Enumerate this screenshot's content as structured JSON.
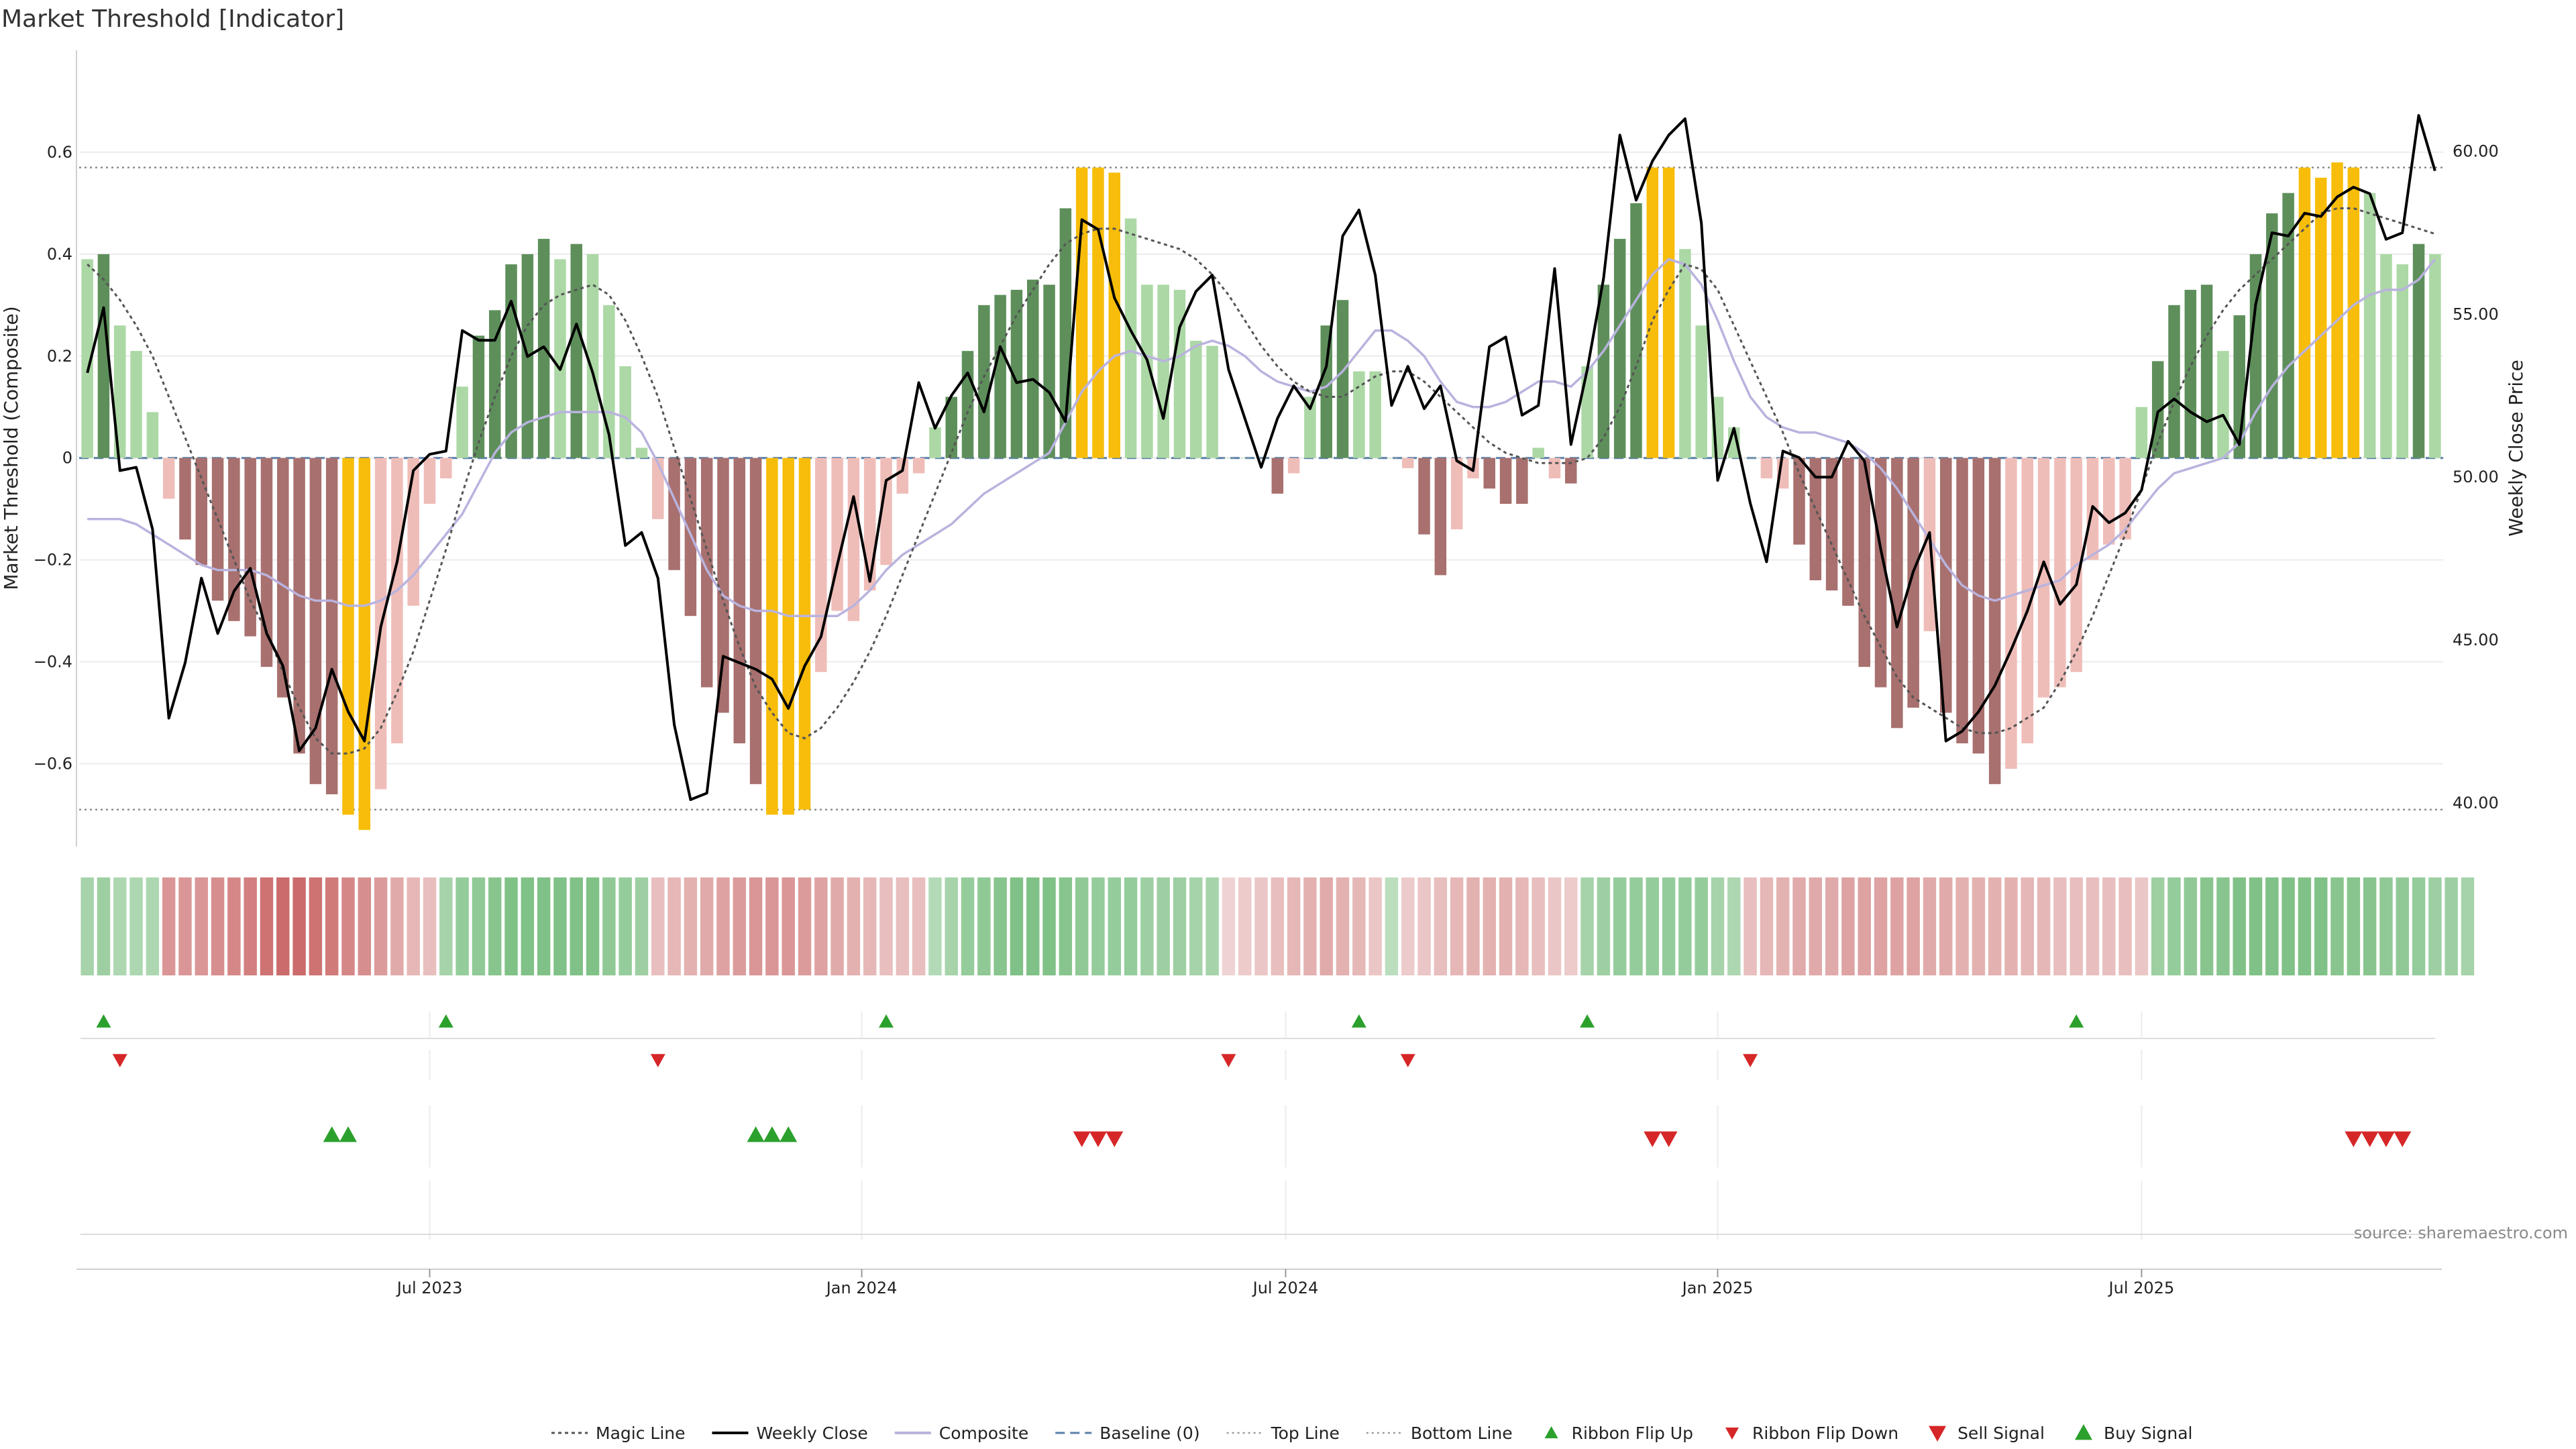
{
  "chart_data": {
    "type": "bar",
    "title": "Market Threshold [Indicator]",
    "ylabel_left": "Market Threshold (Composite)",
    "ylabel_right": "Weekly Close Price",
    "source": "source: sharemaestro.com",
    "ylim_left": [
      -0.76,
      0.8
    ],
    "ylim_right": [
      38.7,
      63.1
    ],
    "left_ticks": [
      "0.6",
      "0.4",
      "0.2",
      "0",
      "−0.2",
      "−0.4",
      "−0.6"
    ],
    "left_tick_values": [
      0.6,
      0.4,
      0.2,
      0,
      -0.2,
      -0.4,
      -0.6
    ],
    "right_ticks": [
      "60.00",
      "55.00",
      "50.00",
      "45.00",
      "40.00"
    ],
    "right_tick_values": [
      60,
      55,
      50,
      45,
      40
    ],
    "x_ticks": [
      {
        "label": "Jul 2023",
        "index": 21.5
      },
      {
        "label": "Jan 2024",
        "index": 48
      },
      {
        "label": "Jul 2024",
        "index": 74
      },
      {
        "label": "Jan 2025",
        "index": 100.5
      },
      {
        "label": "Jul 2025",
        "index": 126.5
      }
    ],
    "top_line": 0.57,
    "bottom_line": -0.69,
    "baseline": 0,
    "grid": true,
    "legend_position": "bottom",
    "colors": {
      "strong_up": "#5e8f5b",
      "weak_up": "#acd8a5",
      "strong_down": "#a8706e",
      "weak_down": "#efbdb8",
      "extreme": "#f7bd0a",
      "close": "#000000",
      "composite": "#b9b3de",
      "magic": "#555555",
      "ribbon_up": "#2ca02c",
      "ribbon_down": "#d62728"
    },
    "composite_values": [
      0.39,
      0.4,
      0.26,
      0.21,
      0.09,
      -0.08,
      -0.16,
      -0.21,
      -0.28,
      -0.32,
      -0.35,
      -0.41,
      -0.47,
      -0.58,
      -0.64,
      -0.66,
      -0.7,
      -0.73,
      -0.65,
      -0.56,
      -0.29,
      -0.09,
      -0.04,
      0.14,
      0.24,
      0.29,
      0.38,
      0.4,
      0.43,
      0.39,
      0.42,
      0.4,
      0.3,
      0.18,
      0.02,
      -0.12,
      -0.22,
      -0.31,
      -0.45,
      -0.5,
      -0.56,
      -0.64,
      -0.7,
      -0.7,
      -0.69,
      -0.42,
      -0.3,
      -0.32,
      -0.26,
      -0.21,
      -0.07,
      -0.03,
      0.06,
      0.12,
      0.21,
      0.3,
      0.32,
      0.33,
      0.35,
      0.34,
      0.49,
      0.57,
      0.57,
      0.56,
      0.47,
      0.34,
      0.34,
      0.33,
      0.23,
      0.22,
      0.0,
      0.0,
      0.0,
      -0.07,
      -0.03,
      0.12,
      0.26,
      0.31,
      0.17,
      0.17,
      0.0,
      -0.02,
      -0.15,
      -0.23,
      -0.14,
      -0.04,
      -0.06,
      -0.09,
      -0.09,
      0.02,
      -0.04,
      -0.05,
      0.18,
      0.34,
      0.43,
      0.5,
      0.57,
      0.57,
      0.41,
      0.26,
      0.12,
      0.06,
      0.0,
      -0.04,
      -0.06,
      -0.17,
      -0.24,
      -0.26,
      -0.29,
      -0.41,
      -0.45,
      -0.53,
      -0.49,
      -0.34,
      -0.5,
      -0.56,
      -0.58,
      -0.64,
      -0.61,
      -0.56,
      -0.47,
      -0.45,
      -0.42,
      -0.2,
      -0.17,
      -0.16,
      0.1,
      0.19,
      0.3,
      0.33,
      0.34,
      0.21,
      0.28,
      0.4,
      0.48,
      0.52,
      0.57,
      0.55,
      0.58,
      0.57,
      0.52,
      0.4,
      0.38,
      0.42,
      0.4
    ],
    "bar_colors": [
      "weak_up",
      "strong_up",
      "weak_up",
      "weak_up",
      "weak_up",
      "weak_down",
      "strong_down",
      "strong_down",
      "strong_down",
      "strong_down",
      "strong_down",
      "strong_down",
      "strong_down",
      "strong_down",
      "strong_down",
      "strong_down",
      "extreme",
      "extreme",
      "weak_down",
      "weak_down",
      "weak_down",
      "weak_down",
      "weak_down",
      "weak_up",
      "strong_up",
      "strong_up",
      "strong_up",
      "strong_up",
      "strong_up",
      "weak_up",
      "strong_up",
      "weak_up",
      "weak_up",
      "weak_up",
      "weak_up",
      "weak_down",
      "strong_down",
      "strong_down",
      "strong_down",
      "strong_down",
      "strong_down",
      "strong_down",
      "extreme",
      "extreme",
      "extreme",
      "weak_down",
      "weak_down",
      "weak_down",
      "weak_down",
      "weak_down",
      "weak_down",
      "weak_down",
      "weak_up",
      "strong_up",
      "strong_up",
      "strong_up",
      "strong_up",
      "strong_up",
      "strong_up",
      "strong_up",
      "strong_up",
      "extreme",
      "extreme",
      "extreme",
      "weak_up",
      "weak_up",
      "weak_up",
      "weak_up",
      "weak_up",
      "weak_up",
      "weak_up",
      "weak_up",
      "weak_up",
      "strong_down",
      "weak_down",
      "weak_up",
      "strong_up",
      "strong_up",
      "weak_up",
      "weak_up",
      "weak_up",
      "weak_down",
      "strong_down",
      "strong_down",
      "weak_down",
      "weak_down",
      "strong_down",
      "strong_down",
      "strong_down",
      "weak_up",
      "weak_down",
      "strong_down",
      "weak_up",
      "strong_up",
      "strong_up",
      "strong_up",
      "extreme",
      "extreme",
      "weak_up",
      "weak_up",
      "weak_up",
      "weak_up",
      "weak_up",
      "weak_down",
      "weak_down",
      "strong_down",
      "strong_down",
      "strong_down",
      "strong_down",
      "strong_down",
      "strong_down",
      "strong_down",
      "strong_down",
      "weak_down",
      "strong_down",
      "strong_down",
      "strong_down",
      "strong_down",
      "weak_down",
      "weak_down",
      "weak_down",
      "weak_down",
      "weak_down",
      "weak_down",
      "weak_down",
      "weak_down",
      "weak_up",
      "strong_up",
      "strong_up",
      "strong_up",
      "strong_up",
      "weak_up",
      "strong_up",
      "strong_up",
      "strong_up",
      "strong_up",
      "extreme",
      "extreme",
      "extreme",
      "extreme",
      "weak_up",
      "weak_up",
      "weak_up",
      "strong_up",
      "weak_up"
    ],
    "weekly_close": [
      53.2,
      55.2,
      50.2,
      50.3,
      48.4,
      42.6,
      44.3,
      46.9,
      45.2,
      46.5,
      47.2,
      45.2,
      44.2,
      41.6,
      42.3,
      44.1,
      42.8,
      41.9,
      45.4,
      47.4,
      50.2,
      50.7,
      50.8,
      54.5,
      54.2,
      54.2,
      55.4,
      53.7,
      54.0,
      53.3,
      54.7,
      53.2,
      51.3,
      47.9,
      48.3,
      46.9,
      42.4,
      40.1,
      40.3,
      44.5,
      44.3,
      44.1,
      43.8,
      42.9,
      44.2,
      45.1,
      47.3,
      49.4,
      46.8,
      49.9,
      50.2,
      52.9,
      51.5,
      52.5,
      53.2,
      52.0,
      54.0,
      52.9,
      53.0,
      52.6,
      51.7,
      57.9,
      57.6,
      55.5,
      54.5,
      53.6,
      51.8,
      54.6,
      55.7,
      56.2,
      53.3,
      51.8,
      50.3,
      51.8,
      52.8,
      52.1,
      53.4,
      57.4,
      58.2,
      56.2,
      52.2,
      53.4,
      52.1,
      52.8,
      50.5,
      50.2,
      54.0,
      54.3,
      51.9,
      52.2,
      56.4,
      51.0,
      53.3,
      56.1,
      60.5,
      58.5,
      59.7,
      60.5,
      61.0,
      57.8,
      49.9,
      51.5,
      49.2,
      47.4,
      50.8,
      50.6,
      50.0,
      50.0,
      51.1,
      50.5,
      47.8,
      45.4,
      47.1,
      48.3,
      41.9,
      42.2,
      42.8,
      43.6,
      44.7,
      45.9,
      47.4,
      46.1,
      46.7,
      49.1,
      48.6,
      48.9,
      49.6,
      52.0,
      52.4,
      52.0,
      51.7,
      51.9,
      51.0,
      55.3,
      57.5,
      57.4,
      58.1,
      58.0,
      58.6,
      58.9,
      58.7,
      57.3,
      57.5,
      61.1,
      59.4
    ],
    "magic_line": [
      0.38,
      0.35,
      0.31,
      0.26,
      0.2,
      0.12,
      0.04,
      -0.04,
      -0.12,
      -0.2,
      -0.28,
      -0.34,
      -0.42,
      -0.49,
      -0.55,
      -0.58,
      -0.58,
      -0.57,
      -0.53,
      -0.46,
      -0.38,
      -0.28,
      -0.18,
      -0.07,
      0.03,
      0.12,
      0.2,
      0.26,
      0.3,
      0.32,
      0.33,
      0.34,
      0.32,
      0.27,
      0.2,
      0.12,
      0.02,
      -0.08,
      -0.18,
      -0.28,
      -0.37,
      -0.45,
      -0.5,
      -0.54,
      -0.55,
      -0.53,
      -0.49,
      -0.44,
      -0.38,
      -0.31,
      -0.23,
      -0.15,
      -0.07,
      0.01,
      0.09,
      0.16,
      0.22,
      0.28,
      0.33,
      0.38,
      0.42,
      0.44,
      0.45,
      0.45,
      0.44,
      0.43,
      0.42,
      0.41,
      0.39,
      0.36,
      0.32,
      0.27,
      0.22,
      0.18,
      0.15,
      0.13,
      0.12,
      0.12,
      0.14,
      0.16,
      0.17,
      0.17,
      0.15,
      0.12,
      0.09,
      0.06,
      0.03,
      0.01,
      0.0,
      -0.01,
      -0.01,
      -0.01,
      0.0,
      0.04,
      0.1,
      0.18,
      0.27,
      0.33,
      0.38,
      0.37,
      0.33,
      0.26,
      0.19,
      0.12,
      0.05,
      -0.03,
      -0.1,
      -0.17,
      -0.24,
      -0.31,
      -0.37,
      -0.43,
      -0.47,
      -0.49,
      -0.51,
      -0.53,
      -0.54,
      -0.54,
      -0.53,
      -0.51,
      -0.49,
      -0.44,
      -0.38,
      -0.31,
      -0.23,
      -0.15,
      -0.06,
      0.03,
      0.11,
      0.18,
      0.24,
      0.29,
      0.33,
      0.36,
      0.39,
      0.42,
      0.45,
      0.48,
      0.49,
      0.49,
      0.48,
      0.47,
      0.46,
      0.45,
      0.44
    ],
    "composite_smooth": [
      -0.12,
      -0.12,
      -0.12,
      -0.13,
      -0.15,
      -0.17,
      -0.19,
      -0.21,
      -0.22,
      -0.22,
      -0.22,
      -0.23,
      -0.25,
      -0.27,
      -0.28,
      -0.28,
      -0.29,
      -0.29,
      -0.28,
      -0.26,
      -0.23,
      -0.19,
      -0.15,
      -0.11,
      -0.05,
      0.01,
      0.05,
      0.07,
      0.08,
      0.09,
      0.09,
      0.09,
      0.09,
      0.08,
      0.05,
      -0.01,
      -0.08,
      -0.15,
      -0.22,
      -0.27,
      -0.29,
      -0.3,
      -0.3,
      -0.31,
      -0.31,
      -0.31,
      -0.31,
      -0.29,
      -0.26,
      -0.22,
      -0.19,
      -0.17,
      -0.15,
      -0.13,
      -0.1,
      -0.07,
      -0.05,
      -0.03,
      -0.01,
      0.01,
      0.07,
      0.13,
      0.17,
      0.2,
      0.21,
      0.2,
      0.19,
      0.2,
      0.22,
      0.23,
      0.22,
      0.2,
      0.17,
      0.15,
      0.14,
      0.13,
      0.14,
      0.17,
      0.21,
      0.25,
      0.25,
      0.23,
      0.2,
      0.15,
      0.11,
      0.1,
      0.1,
      0.11,
      0.13,
      0.15,
      0.15,
      0.14,
      0.17,
      0.21,
      0.26,
      0.31,
      0.36,
      0.39,
      0.38,
      0.34,
      0.27,
      0.19,
      0.12,
      0.08,
      0.06,
      0.05,
      0.05,
      0.04,
      0.03,
      0.01,
      -0.02,
      -0.06,
      -0.11,
      -0.16,
      -0.21,
      -0.25,
      -0.27,
      -0.28,
      -0.27,
      -0.26,
      -0.25,
      -0.24,
      -0.21,
      -0.19,
      -0.17,
      -0.14,
      -0.1,
      -0.06,
      -0.03,
      -0.02,
      -0.01,
      0.0,
      0.03,
      0.09,
      0.14,
      0.18,
      0.21,
      0.24,
      0.27,
      0.3,
      0.32,
      0.33,
      0.33,
      0.35,
      0.39
    ],
    "ribbon_index": [
      0.34,
      0.4,
      0.3,
      0.3,
      0.3,
      -0.5,
      -0.5,
      -0.5,
      -0.55,
      -0.6,
      -0.65,
      -0.75,
      -0.8,
      -0.8,
      -0.75,
      -0.7,
      -0.6,
      -0.55,
      -0.45,
      -0.35,
      -0.25,
      -0.2,
      0.35,
      0.45,
      0.5,
      0.55,
      0.6,
      0.6,
      0.6,
      0.6,
      0.6,
      0.6,
      0.5,
      0.45,
      0.4,
      -0.2,
      -0.25,
      -0.3,
      -0.35,
      -0.4,
      -0.45,
      -0.5,
      -0.5,
      -0.5,
      -0.45,
      -0.4,
      -0.35,
      -0.3,
      -0.25,
      -0.2,
      -0.2,
      -0.2,
      0.25,
      0.35,
      0.45,
      0.5,
      0.55,
      0.6,
      0.6,
      0.6,
      0.55,
      0.5,
      0.45,
      0.45,
      0.45,
      0.4,
      0.4,
      0.4,
      0.35,
      0.35,
      -0.05,
      -0.1,
      -0.15,
      -0.2,
      -0.25,
      -0.3,
      -0.35,
      -0.3,
      -0.25,
      -0.15,
      0.2,
      -0.1,
      -0.15,
      -0.2,
      -0.25,
      -0.3,
      -0.3,
      -0.3,
      -0.25,
      -0.2,
      -0.15,
      -0.1,
      0.35,
      0.4,
      0.45,
      0.45,
      0.45,
      0.45,
      0.45,
      0.45,
      0.35,
      0.3,
      -0.2,
      -0.25,
      -0.3,
      -0.35,
      -0.35,
      -0.35,
      -0.4,
      -0.4,
      -0.4,
      -0.4,
      -0.4,
      -0.35,
      -0.35,
      -0.3,
      -0.3,
      -0.3,
      -0.3,
      -0.25,
      -0.25,
      -0.2,
      -0.2,
      -0.2,
      -0.2,
      -0.2,
      -0.15,
      0.4,
      0.45,
      0.5,
      0.55,
      0.55,
      0.6,
      0.6,
      0.6,
      0.6,
      0.6,
      0.6,
      0.55,
      0.55,
      0.55,
      0.5,
      0.5,
      0.45,
      0.4,
      0.4,
      0.35
    ],
    "ribbon_flip_up": [
      1,
      22,
      49,
      78,
      92,
      122
    ],
    "ribbon_flip_down": [
      2,
      35,
      70,
      81,
      102
    ],
    "buy_signals": [
      15,
      16,
      41,
      42,
      43
    ],
    "sell_signals": [
      61,
      62,
      63,
      96,
      97,
      139,
      140,
      141,
      142
    ],
    "legend": [
      {
        "label": "Magic Line",
        "icon": "dotted-line"
      },
      {
        "label": "Weekly Close",
        "icon": "solid-line"
      },
      {
        "label": "Composite",
        "icon": "lavender-line"
      },
      {
        "label": "Baseline (0)",
        "icon": "dashed-line"
      },
      {
        "label": "Top Line",
        "icon": "light-dotted-line"
      },
      {
        "label": "Bottom Line",
        "icon": "light-dotted-line"
      },
      {
        "label": "Ribbon Flip Up",
        "icon": "small-up-triangle"
      },
      {
        "label": "Ribbon Flip Down",
        "icon": "small-down-triangle"
      },
      {
        "label": "Sell Signal",
        "icon": "down-triangle"
      },
      {
        "label": "Buy Signal",
        "icon": "up-triangle"
      }
    ]
  }
}
